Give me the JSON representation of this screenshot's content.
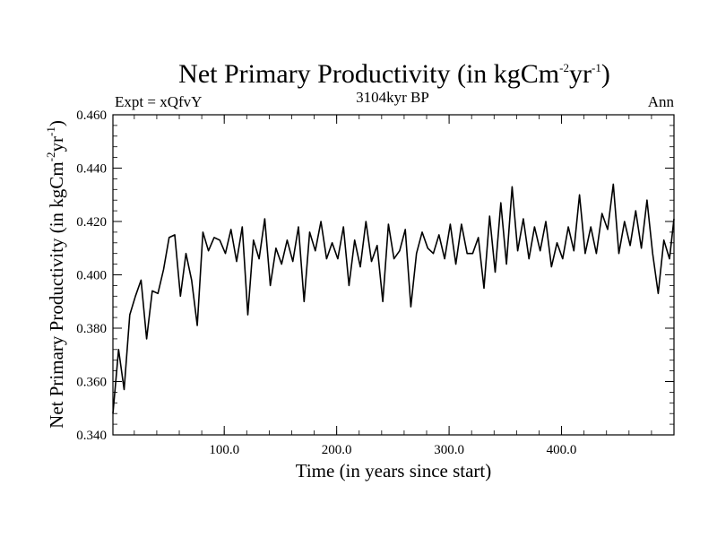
{
  "chart_data": {
    "type": "line",
    "title_main": "Net Primary Productivity (in kgCm",
    "title_exp1": "-2",
    "title_mid": "yr",
    "title_exp2": "-1",
    "title_end": ")",
    "expt_label": "Expt = xQfvY",
    "period_label": "3104kyr BP",
    "season_label": "Ann",
    "xlabel": "Time (in years since start)",
    "ylabel_main": "Net Primary Productivity (in kgCm",
    "ylabel_exp1": "-2",
    "ylabel_mid": "yr",
    "ylabel_exp2": "-1",
    "ylabel_end": ")",
    "xlim": [
      1,
      500
    ],
    "ylim": [
      0.34,
      0.46
    ],
    "xticks": [
      {
        "value": 100,
        "label": "100.0"
      },
      {
        "value": 200,
        "label": "200.0"
      },
      {
        "value": 300,
        "label": "300.0"
      },
      {
        "value": 400,
        "label": "400.0"
      }
    ],
    "yticks": [
      {
        "value": 0.34,
        "label": "0.340"
      },
      {
        "value": 0.36,
        "label": "0.360"
      },
      {
        "value": 0.38,
        "label": "0.380"
      },
      {
        "value": 0.4,
        "label": "0.400"
      },
      {
        "value": 0.42,
        "label": "0.420"
      },
      {
        "value": 0.44,
        "label": "0.440"
      },
      {
        "value": 0.46,
        "label": "0.460"
      }
    ],
    "series": [
      {
        "name": "Net Primary Productivity",
        "x": [
          1,
          6,
          11,
          16,
          21,
          26,
          31,
          36,
          41,
          46,
          51,
          56,
          61,
          66,
          71,
          76,
          81,
          86,
          91,
          96,
          101,
          106,
          111,
          116,
          121,
          126,
          131,
          136,
          141,
          146,
          151,
          156,
          161,
          166,
          171,
          176,
          181,
          186,
          191,
          196,
          201,
          206,
          211,
          216,
          221,
          226,
          231,
          236,
          241,
          246,
          251,
          256,
          261,
          266,
          271,
          276,
          281,
          286,
          291,
          296,
          301,
          306,
          311,
          316,
          321,
          326,
          331,
          336,
          341,
          346,
          351,
          356,
          361,
          366,
          371,
          376,
          381,
          386,
          391,
          396,
          401,
          406,
          411,
          416,
          421,
          426,
          431,
          436,
          441,
          446,
          451,
          456,
          461,
          466,
          471,
          476,
          481,
          486,
          491,
          496,
          500
        ],
        "values": [
          0.348,
          0.372,
          0.357,
          0.385,
          0.392,
          0.398,
          0.376,
          0.394,
          0.393,
          0.402,
          0.414,
          0.415,
          0.392,
          0.408,
          0.398,
          0.381,
          0.416,
          0.409,
          0.414,
          0.413,
          0.408,
          0.417,
          0.405,
          0.418,
          0.385,
          0.413,
          0.406,
          0.421,
          0.396,
          0.41,
          0.404,
          0.413,
          0.405,
          0.418,
          0.39,
          0.416,
          0.409,
          0.42,
          0.406,
          0.412,
          0.406,
          0.418,
          0.396,
          0.413,
          0.403,
          0.42,
          0.405,
          0.411,
          0.39,
          0.419,
          0.406,
          0.409,
          0.417,
          0.388,
          0.408,
          0.416,
          0.41,
          0.408,
          0.415,
          0.406,
          0.419,
          0.404,
          0.419,
          0.408,
          0.408,
          0.414,
          0.395,
          0.422,
          0.401,
          0.427,
          0.404,
          0.433,
          0.409,
          0.421,
          0.406,
          0.418,
          0.409,
          0.42,
          0.403,
          0.412,
          0.406,
          0.418,
          0.409,
          0.43,
          0.408,
          0.418,
          0.408,
          0.423,
          0.417,
          0.434,
          0.408,
          0.42,
          0.411,
          0.424,
          0.41,
          0.428,
          0.408,
          0.393,
          0.413,
          0.406,
          0.421
        ]
      }
    ]
  }
}
